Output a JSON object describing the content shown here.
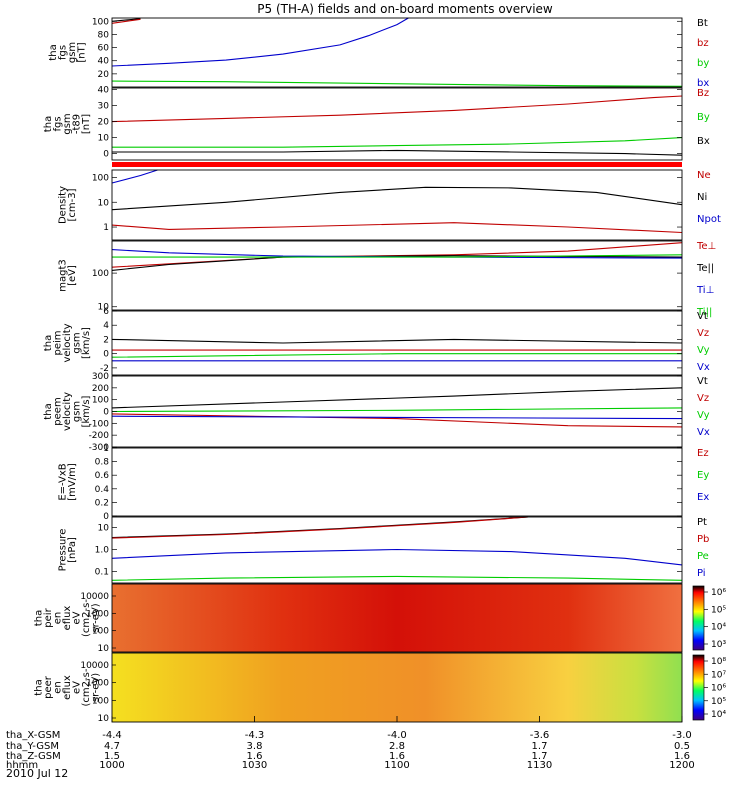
{
  "title": "P5 (TH-A) fields and on-board moments overview",
  "date": "2010 Jul 12",
  "chart_data": [
    {
      "type": "line",
      "ylabel": [
        "tha",
        "fgs",
        "gsm",
        "[nT]"
      ],
      "yticks": [
        20,
        40,
        60,
        80,
        100
      ],
      "ylim": [
        0,
        105
      ],
      "series": [
        {
          "name": "Bt",
          "color": "#000000",
          "values": [
            [
              0,
              100
            ],
            [
              0.05,
              104
            ]
          ]
        },
        {
          "name": "bz",
          "color": "#c00000",
          "values": [
            [
              0,
              97
            ],
            [
              0.05,
              103
            ]
          ]
        },
        {
          "name": "by",
          "color": "#00cc00",
          "values": [
            [
              0,
              9
            ],
            [
              0.2,
              8
            ],
            [
              0.4,
              6
            ],
            [
              0.6,
              4
            ],
            [
              0.8,
              2
            ],
            [
              1.0,
              1
            ]
          ]
        },
        {
          "name": "bx",
          "color": "#0000cc",
          "values": [
            [
              0,
              32
            ],
            [
              0.1,
              36
            ],
            [
              0.2,
              41
            ],
            [
              0.3,
              50
            ],
            [
              0.4,
              64
            ],
            [
              0.45,
              78
            ],
            [
              0.5,
              95
            ],
            [
              0.52,
              105
            ]
          ]
        }
      ]
    },
    {
      "type": "line",
      "ylabel": [
        "tha",
        "fgs",
        "gsm",
        "-t89",
        "[nT]"
      ],
      "yticks": [
        0,
        10,
        20,
        30,
        40
      ],
      "ylim": [
        -4,
        41
      ],
      "series": [
        {
          "name": "Bz",
          "color": "#c00000",
          "values": [
            [
              0,
              20
            ],
            [
              0.2,
              22
            ],
            [
              0.4,
              24
            ],
            [
              0.6,
              27
            ],
            [
              0.8,
              31
            ],
            [
              0.95,
              35
            ],
            [
              1.0,
              36
            ]
          ]
        },
        {
          "name": "By",
          "color": "#00cc00",
          "values": [
            [
              0,
              4
            ],
            [
              0.3,
              4
            ],
            [
              0.5,
              5
            ],
            [
              0.7,
              6
            ],
            [
              0.9,
              8
            ],
            [
              1.0,
              10
            ]
          ]
        },
        {
          "name": "Bx",
          "color": "#000000",
          "values": [
            [
              0,
              1
            ],
            [
              0.3,
              1
            ],
            [
              0.5,
              2
            ],
            [
              0.7,
              1
            ],
            [
              0.9,
              0
            ],
            [
              1.0,
              -1
            ]
          ]
        }
      ]
    },
    {
      "type": "line",
      "ylabel": [
        "Density",
        "[cm-3]"
      ],
      "yticks": [
        "1",
        "10",
        "100"
      ],
      "ylim": [
        0.3,
        200
      ],
      "series": [
        {
          "name": "Ne",
          "color": "#c00000",
          "values": [
            [
              0,
              1.2
            ],
            [
              0.1,
              0.8
            ],
            [
              0.3,
              1.0
            ],
            [
              0.6,
              1.5
            ],
            [
              0.8,
              1.0
            ],
            [
              1.0,
              0.6
            ]
          ]
        },
        {
          "name": "Ni",
          "color": "#000000",
          "values": [
            [
              0,
              5
            ],
            [
              0.2,
              10
            ],
            [
              0.4,
              25
            ],
            [
              0.55,
              40
            ],
            [
              0.7,
              38
            ],
            [
              0.85,
              25
            ],
            [
              1.0,
              8
            ]
          ]
        },
        {
          "name": "Npot",
          "color": "#0000cc",
          "values": [
            [
              0,
              60
            ],
            [
              0.05,
              120
            ],
            [
              0.08,
              200
            ]
          ]
        }
      ]
    },
    {
      "type": "line",
      "ylabel": [
        "magt3",
        "[eV]"
      ],
      "yticks": [
        "10",
        "100"
      ],
      "ylim": [
        8,
        900
      ],
      "series": [
        {
          "name": "Te⊥",
          "color": "#c00000",
          "values": [
            [
              0,
              150
            ],
            [
              0.3,
              300
            ],
            [
              0.6,
              350
            ],
            [
              0.8,
              450
            ],
            [
              1.0,
              800
            ]
          ]
        },
        {
          "name": "Te||",
          "color": "#000000",
          "values": [
            [
              0,
              120
            ],
            [
              0.1,
              180
            ],
            [
              0.3,
              300
            ],
            [
              0.6,
              330
            ],
            [
              1.0,
              300
            ]
          ]
        },
        {
          "name": "Ti⊥",
          "color": "#0000cc",
          "values": [
            [
              0,
              500
            ],
            [
              0.1,
              400
            ],
            [
              0.3,
              320
            ],
            [
              0.6,
              300
            ],
            [
              1.0,
              280
            ]
          ]
        },
        {
          "name": "Ti||",
          "color": "#00cc00",
          "values": [
            [
              0,
              300
            ],
            [
              0.3,
              300
            ],
            [
              0.6,
              300
            ],
            [
              1.0,
              350
            ]
          ]
        }
      ]
    },
    {
      "type": "line",
      "ylabel": [
        "tha",
        "peim",
        "velocity",
        "gsm",
        "[km/s]"
      ],
      "yticks": [
        -2,
        0,
        2,
        4,
        6
      ],
      "ylim": [
        -3,
        6
      ],
      "series": [
        {
          "name": "Vt",
          "color": "#000000",
          "values": [
            [
              0,
              2
            ],
            [
              0.3,
              1.5
            ],
            [
              0.6,
              2
            ],
            [
              1.0,
              1.5
            ]
          ]
        },
        {
          "name": "Vz",
          "color": "#c00000",
          "values": [
            [
              0,
              0.5
            ],
            [
              0.5,
              0.5
            ],
            [
              1.0,
              0.5
            ]
          ]
        },
        {
          "name": "Vy",
          "color": "#00cc00",
          "values": [
            [
              0,
              -0.5
            ],
            [
              0.5,
              0
            ],
            [
              1.0,
              0
            ]
          ]
        },
        {
          "name": "Vx",
          "color": "#0000cc",
          "values": [
            [
              0,
              -1
            ],
            [
              0.5,
              -1
            ],
            [
              1.0,
              -1
            ]
          ]
        }
      ]
    },
    {
      "type": "line",
      "ylabel": [
        "tha",
        "peem",
        "velocity",
        "gsm",
        "[km/s]"
      ],
      "yticks": [
        -300,
        -200,
        -100,
        0,
        100,
        200,
        300
      ],
      "ylim": [
        -300,
        300
      ],
      "series": [
        {
          "name": "Vt",
          "color": "#000000",
          "values": [
            [
              0,
              30
            ],
            [
              0.3,
              80
            ],
            [
              0.6,
              130
            ],
            [
              0.8,
              170
            ],
            [
              1.0,
              200
            ]
          ]
        },
        {
          "name": "Vz",
          "color": "#c00000",
          "values": [
            [
              0,
              -20
            ],
            [
              0.5,
              -60
            ],
            [
              0.8,
              -120
            ],
            [
              1.0,
              -130
            ]
          ]
        },
        {
          "name": "Vy",
          "color": "#00cc00",
          "values": [
            [
              0,
              0
            ],
            [
              0.5,
              10
            ],
            [
              1.0,
              30
            ]
          ]
        },
        {
          "name": "Vx",
          "color": "#0000cc",
          "values": [
            [
              0,
              -40
            ],
            [
              0.5,
              -50
            ],
            [
              1.0,
              -60
            ]
          ]
        }
      ]
    },
    {
      "type": "line",
      "ylabel": [
        "E=-VxB",
        "[mV/m]"
      ],
      "yticks": [
        0.0,
        0.2,
        0.4,
        0.6,
        0.8,
        1.0
      ],
      "ylim": [
        0,
        1
      ],
      "series": [
        {
          "name": "Ez",
          "color": "#c00000",
          "values": []
        },
        {
          "name": "Ey",
          "color": "#00cc00",
          "values": []
        },
        {
          "name": "Ex",
          "color": "#0000cc",
          "values": []
        }
      ]
    },
    {
      "type": "line",
      "ylabel": [
        "Pressure",
        "[nPa]"
      ],
      "yticks": [
        "0.1",
        "1.0",
        "10"
      ],
      "ylim": [
        0.03,
        30
      ],
      "series": [
        {
          "name": "Pt",
          "color": "#000000",
          "values": [
            [
              0,
              3.5
            ],
            [
              0.2,
              5
            ],
            [
              0.4,
              9
            ],
            [
              0.6,
              18
            ],
            [
              0.73,
              30
            ]
          ]
        },
        {
          "name": "Pb",
          "color": "#c00000",
          "values": [
            [
              0,
              3.3
            ],
            [
              0.2,
              4.8
            ],
            [
              0.4,
              8.5
            ],
            [
              0.6,
              17
            ],
            [
              0.73,
              30
            ]
          ]
        },
        {
          "name": "Pe",
          "color": "#00cc00",
          "values": [
            [
              0,
              0.04
            ],
            [
              0.2,
              0.05
            ],
            [
              0.5,
              0.06
            ],
            [
              0.8,
              0.05
            ],
            [
              1.0,
              0.04
            ]
          ]
        },
        {
          "name": "Pi",
          "color": "#0000cc",
          "values": [
            [
              0,
              0.4
            ],
            [
              0.2,
              0.7
            ],
            [
              0.5,
              1.0
            ],
            [
              0.7,
              0.8
            ],
            [
              0.9,
              0.4
            ],
            [
              1.0,
              0.2
            ]
          ]
        }
      ]
    },
    {
      "type": "heatmap",
      "ylabel": [
        "tha",
        "peir",
        "en",
        "eflux",
        "eV",
        "(cm2-s-",
        "sr-eV)"
      ],
      "yticks": [
        "10",
        "100",
        "1000",
        "10000"
      ],
      "colorbar_ticks": [
        "10³",
        "10⁴",
        "10⁵",
        "10⁶"
      ]
    },
    {
      "type": "heatmap",
      "ylabel": [
        "tha",
        "peer",
        "en",
        "eflux",
        "eV",
        "(cm2-s-",
        "sr-eV)"
      ],
      "yticks": [
        "10",
        "100",
        "1000",
        "10000"
      ],
      "colorbar_ticks": [
        "10⁴",
        "10⁵",
        "10⁶",
        "10⁷",
        "10⁸"
      ]
    }
  ],
  "x_axis": {
    "row_labels": [
      "tha_X-GSM",
      "tha_Y-GSM",
      "tha_Z-GSM",
      "hhmm"
    ],
    "columns": [
      [
        "-4.4",
        "4.7",
        "1.5",
        "1000"
      ],
      [
        "-4.3",
        "3.8",
        "1.6",
        "1030"
      ],
      [
        "-4.0",
        "2.8",
        "1.6",
        "1100"
      ],
      [
        "-3.6",
        "1.7",
        "1.7",
        "1130"
      ],
      [
        "-3.0",
        "0.5",
        "1.6",
        "1200"
      ]
    ]
  }
}
